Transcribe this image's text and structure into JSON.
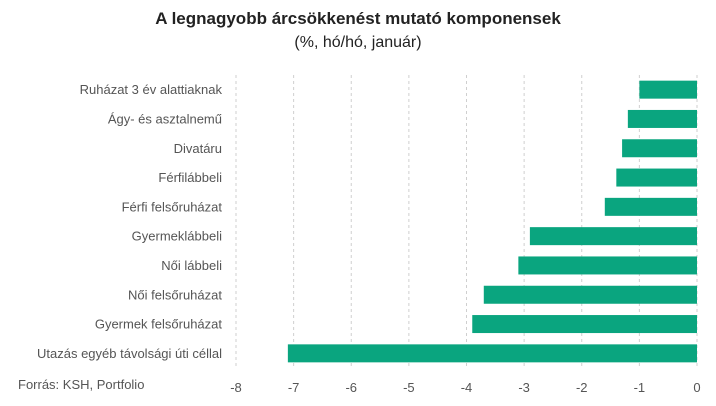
{
  "chart_data": {
    "type": "bar",
    "orientation": "horizontal",
    "title": "A legnagyobb árcsökkenést mutató komponensek",
    "subtitle": "(%, hó/hó, január)",
    "categories": [
      "Ruházat 3 év alattiaknak",
      "Ágy- és asztalnemű",
      "Divatáru",
      "Férfilábbeli",
      "Férfi felsőruházat",
      "Gyermeklábbeli",
      "Női lábbeli",
      "Női felsőruházat",
      "Gyermek felsőruházat",
      "Utazás egyéb távolsági úti céllal"
    ],
    "values": [
      -1.0,
      -1.2,
      -1.3,
      -1.4,
      -1.6,
      -2.9,
      -3.1,
      -3.7,
      -3.9,
      -7.1
    ],
    "xlim": [
      -8,
      0
    ],
    "xticks": [
      "-8",
      "-7",
      "-6",
      "-5",
      "-4",
      "-3",
      "-2",
      "-1",
      "0"
    ],
    "grid": "vertical-dashed",
    "bar_color": "#0aa57f",
    "source": "Forrás: KSH, Portfolio"
  }
}
